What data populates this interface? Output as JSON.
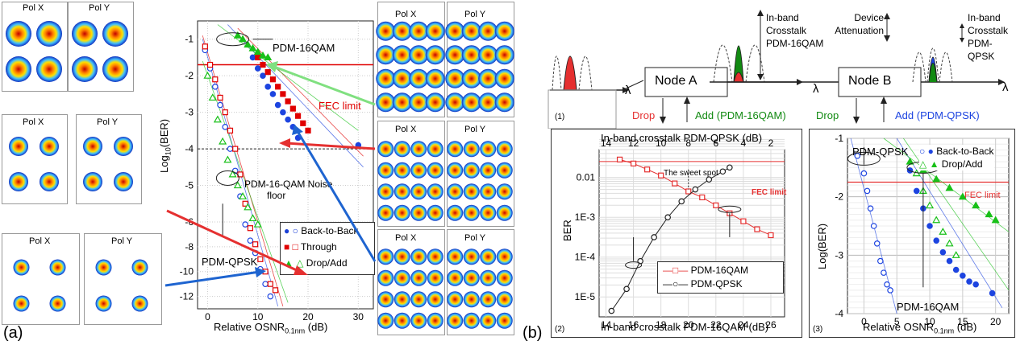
{
  "panel_a": {
    "label": "(a)",
    "pol_x": "Pol X",
    "pol_y": "Pol Y",
    "xlabel": "Relative OSNR",
    "xlabel_sub": "0.1nm",
    "xlabel_unit": "(dB)",
    "ylabel": "Log",
    "ylabel_sub": "10",
    "ylabel_rest": "(BER)",
    "fec_limit": "FEC limit",
    "pdm16qam": "PDM-16QAM",
    "pdmqpsk": "PDM-QPSK",
    "noise_floor_line1": "PDM-16-QAM Noise",
    "noise_floor_line2": "floor",
    "legend": [
      "Back-to-Back",
      "Through",
      "Drop/Add"
    ]
  },
  "panel_b": {
    "label": "(b)",
    "lambda": "λ",
    "node_a": "Node A",
    "node_b": "Node B",
    "drop": "Drop",
    "add_16qam": "Add (PDM-16QAM)",
    "add_qpsk": "Add (PDM-QPSK)",
    "inband_16qam": [
      "In-band",
      "Crosstalk",
      "PDM-16QAM"
    ],
    "device_att": [
      "Device",
      "Attenuation"
    ],
    "inband_qpsk": [
      "In-band",
      "Crosstalk",
      "PDM-QPSK"
    ],
    "sub1": "(1)",
    "sub2": "(2)",
    "sub3": "(3)",
    "plot2_top_axis": "In-band crosstalk PDM-QPSK (dB)",
    "plot2_bottom_axis": "In-band crosstalk PDM-16QAM (dB)",
    "plot2_ylabel": "BER",
    "sweet_spot": "The sweet spot",
    "fec_limit": "FEC limit",
    "plot2_legend": [
      "PDM-16QAM",
      "PDM-QPSK"
    ],
    "plot3_xlabel": "Relative OSNR",
    "plot3_xsub": "0.1nm",
    "plot3_xunit": "(dB)",
    "plot3_ylabel": "Log(BER)",
    "plot3_legend": [
      "Back-to-Back",
      "Drop/Add"
    ],
    "plot3_qpsk": "PDM-QPSK",
    "plot3_16qam": "PDM-16QAM"
  },
  "chart_data": [
    {
      "type": "scatter",
      "xlabel": "Relative OSNR0.1nm (dB)",
      "ylabel": "Log10(BER)",
      "xlim": [
        -2,
        33
      ],
      "ylim": [
        -13,
        -0.5
      ],
      "xticks": [
        0,
        10,
        20,
        30
      ],
      "yticks": [
        -1,
        -2,
        -3,
        -4,
        -5,
        -6,
        -8,
        -10,
        -12
      ],
      "fec_limit": -1.7,
      "series": [
        {
          "name": "Back-to-Back",
          "x": [
            -0.5,
            0.5,
            1.5,
            2.5,
            3.5,
            4.5,
            5.5,
            6.5,
            7.5,
            8.5,
            9.5,
            10.5,
            11.5,
            12.5
          ],
          "y": [
            -1.3,
            -1.8,
            -2.3,
            -2.8,
            -3.4,
            -4.0,
            -4.6,
            -5.3,
            -6.2,
            -7.5,
            -8.5,
            -9.8,
            -11.0,
            -12.0
          ]
        },
        {
          "name": "Back-to-Back",
          "x": [
            9,
            10,
            11,
            12,
            13,
            14,
            15,
            16,
            17,
            18,
            30
          ],
          "y": [
            -1.5,
            -1.8,
            -2.0,
            -2.3,
            -2.5,
            -2.8,
            -3.0,
            -3.2,
            -3.4,
            -3.7,
            -3.9
          ]
        },
        {
          "name": "Through",
          "x": [
            -0.5,
            0.5,
            1.5,
            2.5,
            3.5,
            4.5,
            5.5,
            6.5,
            7.5,
            8.5,
            9.5,
            10.5,
            11.5,
            12.5,
            13.5
          ],
          "y": [
            -1.2,
            -1.7,
            -2.1,
            -2.6,
            -3.0,
            -3.5,
            -4.0,
            -4.7,
            -5.5,
            -6.5,
            -7.8,
            -9.0,
            -10.0,
            -11.0,
            -11.5
          ]
        },
        {
          "name": "Through",
          "x": [
            10,
            11,
            12,
            13,
            14,
            15,
            16,
            17,
            18,
            19,
            20
          ],
          "y": [
            -1.5,
            -1.7,
            -1.9,
            -2.1,
            -2.3,
            -2.5,
            -2.7,
            -2.9,
            -3.1,
            -3.3,
            -3.5
          ]
        },
        {
          "name": "Drop/Add",
          "x": [
            0,
            1,
            2,
            3,
            4,
            5,
            6,
            7,
            8,
            9,
            10
          ],
          "y": [
            -2.0,
            -2.6,
            -3.2,
            -3.8,
            -4.3,
            -4.7,
            -5.0,
            -5.3,
            -5.6,
            -5.9,
            -6.2
          ]
        },
        {
          "name": "Drop/Add",
          "x": [
            6,
            7,
            8,
            9,
            10,
            11,
            12
          ],
          "y": [
            -0.9,
            -1.0,
            -1.15,
            -1.25,
            -1.35,
            -1.45,
            -1.5
          ]
        }
      ]
    },
    {
      "type": "line",
      "xlabel": "In-band crosstalk PDM-16QAM (dB)",
      "ylabel": "BER",
      "xlim": [
        13.5,
        27
      ],
      "xticks": [
        14,
        16,
        18,
        20,
        22,
        24,
        26
      ],
      "top_xticks": [
        14,
        12,
        10,
        8,
        6,
        4,
        2
      ],
      "yticks": [
        "1E-5",
        "1E-4",
        "1E-3",
        "0.01"
      ],
      "ylim_log10": [
        -5.5,
        -1.3
      ],
      "fec_limit_log10": -1.6,
      "series": [
        {
          "name": "PDM-16QAM",
          "x": [
            15,
            16,
            17,
            18,
            19,
            20,
            21,
            22,
            23,
            24,
            25,
            26
          ],
          "y_log10": [
            -1.55,
            -1.65,
            -1.8,
            -1.95,
            -2.15,
            -2.35,
            -2.5,
            -2.7,
            -2.9,
            -3.1,
            -3.3,
            -3.45
          ]
        },
        {
          "name": "PDM-QPSK",
          "x": [
            14.4,
            15.5,
            16.5,
            17.5,
            18.5,
            19.5,
            20.5,
            21.5,
            22.5,
            23
          ],
          "y_log10": [
            -5.35,
            -4.8,
            -4.1,
            -3.5,
            -3.0,
            -2.6,
            -2.3,
            -2.05,
            -1.85,
            -1.75
          ]
        }
      ]
    },
    {
      "type": "scatter",
      "xlabel": "Relative OSNR0.1nm (dB)",
      "ylabel": "Log(BER)",
      "xlim": [
        -2.5,
        22
      ],
      "ylim": [
        -4,
        -1
      ],
      "xticks": [
        0,
        5,
        10,
        15,
        20
      ],
      "yticks": [
        -1,
        -2,
        -3,
        -4
      ],
      "fec_limit": -1.75,
      "series": [
        {
          "name": "Back-to-Back",
          "x": [
            -1,
            0,
            0.5,
            1,
            1.5,
            2,
            2.5,
            3,
            3.5,
            4
          ],
          "y": [
            -1.3,
            -1.6,
            -1.9,
            -2.2,
            -2.5,
            -2.8,
            -3.1,
            -3.3,
            -3.5,
            -3.6
          ]
        },
        {
          "name": "Back-to-Back",
          "x": [
            7,
            8,
            9,
            10,
            11,
            12,
            13,
            14,
            15,
            16,
            17,
            19.5
          ],
          "y": [
            -1.55,
            -1.9,
            -2.2,
            -2.5,
            -2.75,
            -2.95,
            -3.1,
            -3.25,
            -3.35,
            -3.45,
            -3.5,
            -3.65
          ]
        },
        {
          "name": "Drop/Add",
          "x": [
            8,
            9,
            10,
            11,
            12,
            13,
            14
          ],
          "y": [
            -1.6,
            -1.9,
            -2.15,
            -2.4,
            -2.6,
            -2.8,
            -3.0
          ]
        },
        {
          "name": "Drop/Add",
          "x": [
            7,
            9,
            11,
            13,
            15,
            17,
            19,
            20
          ],
          "y": [
            -1.4,
            -1.55,
            -1.7,
            -1.85,
            -2.0,
            -2.15,
            -2.3,
            -2.4
          ]
        }
      ]
    }
  ]
}
